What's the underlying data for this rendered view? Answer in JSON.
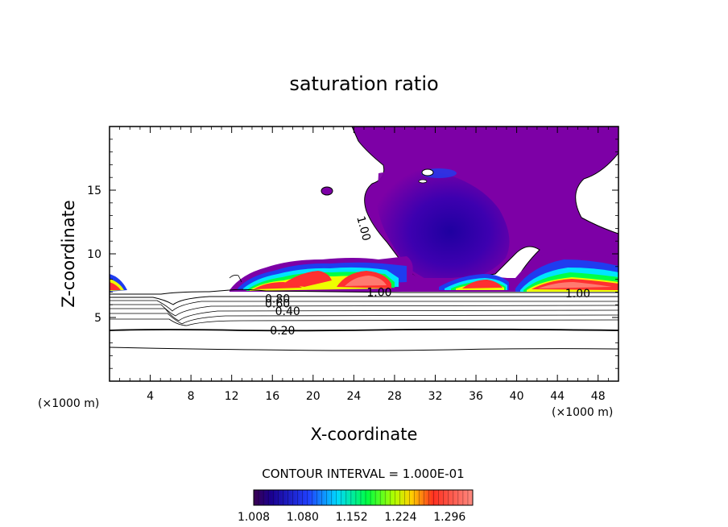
{
  "chart_data": {
    "type": "heatmap",
    "title": "saturation ratio",
    "xlabel": "X-coordinate",
    "ylabel": "Z-coordinate",
    "x_unit_label_left": "(×1000 m)",
    "x_unit_label_right": "(×1000 m)",
    "xlim": [
      0,
      50
    ],
    "ylim": [
      0,
      20
    ],
    "x_ticks": [
      4,
      8,
      12,
      16,
      20,
      24,
      28,
      32,
      36,
      40,
      44,
      48
    ],
    "y_ticks": [
      5,
      10,
      15
    ],
    "contour_interval_label": "CONTOUR INTERVAL = 1.000E-01",
    "colorbar": {
      "range": [
        1.008,
        1.33
      ],
      "tick_labels": [
        "1.008",
        "1.080",
        "1.152",
        "1.224",
        "1.296"
      ],
      "tick_values": [
        1.008,
        1.08,
        1.152,
        1.224,
        1.296
      ]
    },
    "contour_labels": [
      {
        "text": "0.80",
        "x": 16.5,
        "z": 6.5
      },
      {
        "text": "0.60",
        "x": 16.5,
        "z": 6.1
      },
      {
        "text": "0.40",
        "x": 17.5,
        "z": 5.5
      },
      {
        "text": "0.20",
        "x": 17.0,
        "z": 4.0
      },
      {
        "text": "1.00",
        "x": 26.5,
        "z": 7.0
      },
      {
        "text": "1.00",
        "x": 46.0,
        "z": 6.9
      },
      {
        "text": "1.00",
        "x": 25.0,
        "z": 12.0
      }
    ],
    "colors": {
      "purple": "#7d00a6",
      "deep_blue": "#1a00a0",
      "blue": "#1f3cf0",
      "cyan": "#00e5ff",
      "green": "#00ff46",
      "yellow": "#eeff00",
      "red": "#ff3030",
      "salmon": "#ff7a70"
    }
  }
}
